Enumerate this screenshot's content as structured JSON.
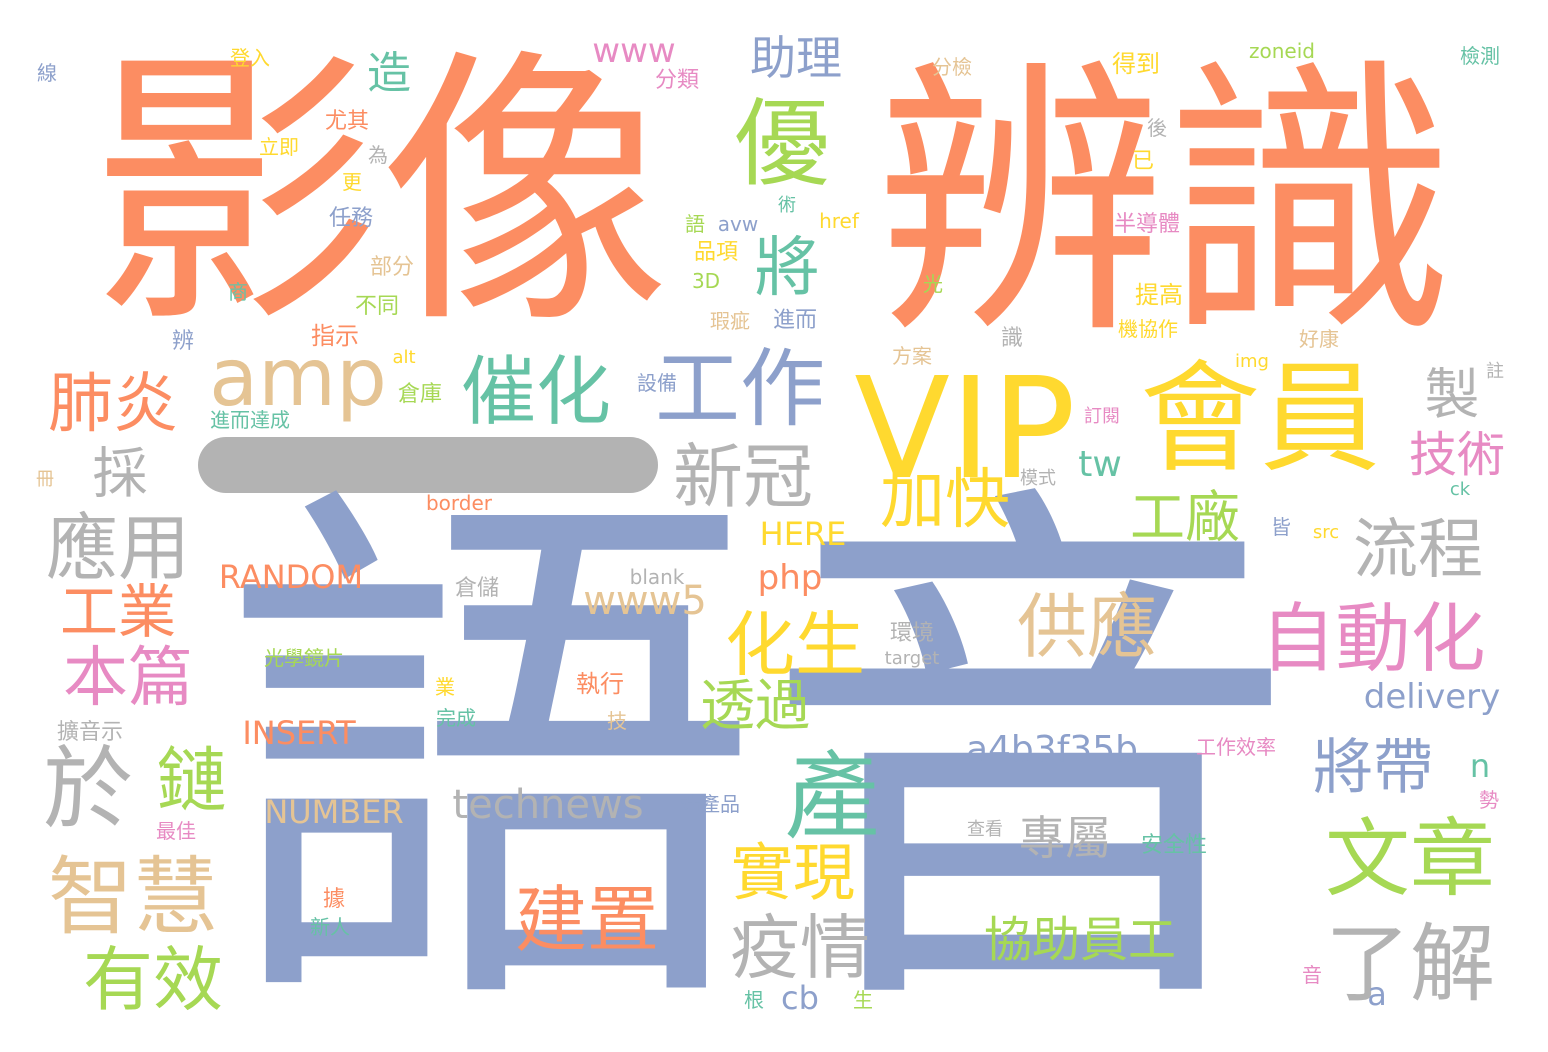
{
  "palette": {
    "orange": "#fc8d62",
    "blue": "#8da0cb",
    "pink": "#e78ac3",
    "green": "#a6d854",
    "yellow": "#ffd92f",
    "tan": "#e5c494",
    "grey": "#b3b3b3",
    "teal": "#66c2a5"
  },
  "words": [
    {
      "text": "影像",
      "color": "orange"
    },
    {
      "text": "辨識",
      "color": "orange"
    },
    {
      "text": "語音",
      "color": "blue"
    },
    {
      "text": "VIP",
      "color": "yellow"
    },
    {
      "text": "會員",
      "color": "yellow"
    },
    {
      "text": "優",
      "color": "green"
    },
    {
      "text": "amp",
      "color": "tan"
    },
    {
      "text": "工作",
      "color": "blue"
    },
    {
      "text": "催化",
      "color": "teal"
    },
    {
      "text": "將",
      "color": "teal"
    },
    {
      "text": "肺炎",
      "color": "orange"
    },
    {
      "text": "採",
      "color": "grey"
    },
    {
      "text": "應用",
      "color": "grey"
    },
    {
      "text": "工業",
      "color": "orange"
    },
    {
      "text": "本篇",
      "color": "pink"
    },
    {
      "text": "於",
      "color": "grey"
    },
    {
      "text": "鏈",
      "color": "green"
    },
    {
      "text": "智慧",
      "color": "tan"
    },
    {
      "text": "有效",
      "color": "green"
    },
    {
      "text": "新冠",
      "color": "grey"
    },
    {
      "text": "加快",
      "color": "yellow"
    },
    {
      "text": "化生",
      "color": "yellow"
    },
    {
      "text": "透過",
      "color": "green"
    },
    {
      "text": "產",
      "color": "teal"
    },
    {
      "text": "實現",
      "color": "yellow"
    },
    {
      "text": "疫情",
      "color": "grey"
    },
    {
      "text": "建置",
      "color": "orange"
    },
    {
      "text": "供應",
      "color": "tan"
    },
    {
      "text": "專屬",
      "color": "grey"
    },
    {
      "text": "協助員工",
      "color": "green"
    },
    {
      "text": "自動化",
      "color": "pink"
    },
    {
      "text": "流程",
      "color": "grey"
    },
    {
      "text": "工廠",
      "color": "green"
    },
    {
      "text": "技術",
      "color": "pink"
    },
    {
      "text": "製",
      "color": "grey"
    },
    {
      "text": "將帶",
      "color": "blue"
    },
    {
      "text": "文章",
      "color": "green"
    },
    {
      "text": "了解",
      "color": "grey"
    },
    {
      "text": "a4b3f35b",
      "color": "blue"
    },
    {
      "text": "delivery",
      "color": "blue"
    },
    {
      "text": "technews",
      "color": "grey"
    },
    {
      "text": "www5",
      "color": "tan"
    },
    {
      "text": "php",
      "color": "orange"
    },
    {
      "text": "tw",
      "color": "teal"
    },
    {
      "text": "助理",
      "color": "blue"
    },
    {
      "text": "造",
      "color": "teal"
    },
    {
      "text": "www",
      "color": "pink"
    },
    {
      "text": "RANDOM",
      "color": "orange"
    },
    {
      "text": "INSERT",
      "color": "orange"
    },
    {
      "text": "NUMBER",
      "color": "tan"
    },
    {
      "text": "HERE",
      "color": "yellow"
    },
    {
      "text": "n",
      "color": "teal"
    },
    {
      "text": "a",
      "color": "blue"
    },
    {
      "text": "cb",
      "color": "blue"
    },
    {
      "text": "線",
      "color": "blue"
    },
    {
      "text": "登入",
      "color": "yellow"
    },
    {
      "text": "分類",
      "color": "pink"
    },
    {
      "text": "分檢",
      "color": "tan"
    },
    {
      "text": "得到",
      "color": "yellow"
    },
    {
      "text": "zoneid",
      "color": "green"
    },
    {
      "text": "檢測",
      "color": "teal"
    },
    {
      "text": "尤其",
      "color": "orange"
    },
    {
      "text": "立即",
      "color": "yellow"
    },
    {
      "text": "為",
      "color": "grey"
    },
    {
      "text": "更",
      "color": "yellow"
    },
    {
      "text": "任務",
      "color": "blue"
    },
    {
      "text": "後",
      "color": "grey"
    },
    {
      "text": "已",
      "color": "yellow"
    },
    {
      "text": "術",
      "color": "teal"
    },
    {
      "text": "語",
      "color": "green"
    },
    {
      "text": "avw",
      "color": "blue"
    },
    {
      "text": "href",
      "color": "yellow"
    },
    {
      "text": "半導體",
      "color": "pink"
    },
    {
      "text": "品項",
      "color": "yellow"
    },
    {
      "text": "3D",
      "color": "green"
    },
    {
      "text": "光",
      "color": "green"
    },
    {
      "text": "部分",
      "color": "tan"
    },
    {
      "text": "商",
      "color": "teal"
    },
    {
      "text": "不同",
      "color": "green"
    },
    {
      "text": "提高",
      "color": "yellow"
    },
    {
      "text": "機協作",
      "color": "yellow"
    },
    {
      "text": "瑕疵",
      "color": "tan"
    },
    {
      "text": "進而",
      "color": "blue"
    },
    {
      "text": "辨",
      "color": "blue"
    },
    {
      "text": "指示",
      "color": "orange"
    },
    {
      "text": "alt",
      "color": "yellow"
    },
    {
      "text": "識",
      "color": "grey"
    },
    {
      "text": "方案",
      "color": "tan"
    },
    {
      "text": "img",
      "color": "yellow"
    },
    {
      "text": "好康",
      "color": "tan"
    },
    {
      "text": "設備",
      "color": "blue"
    },
    {
      "text": "倉庫",
      "color": "green"
    },
    {
      "text": "進而達成",
      "color": "teal"
    },
    {
      "text": "訂閱",
      "color": "pink"
    },
    {
      "text": "註",
      "color": "grey"
    },
    {
      "text": "冊",
      "color": "tan"
    },
    {
      "text": "模式",
      "color": "grey"
    },
    {
      "text": "ck",
      "color": "teal"
    },
    {
      "text": "border",
      "color": "orange"
    },
    {
      "text": "皆",
      "color": "blue"
    },
    {
      "text": "src",
      "color": "yellow"
    },
    {
      "text": "blank",
      "color": "grey"
    },
    {
      "text": "倉儲",
      "color": "grey"
    },
    {
      "text": "環境",
      "color": "grey"
    },
    {
      "text": "target",
      "color": "grey"
    },
    {
      "text": "光學鏡片",
      "color": "green"
    },
    {
      "text": "業",
      "color": "yellow"
    },
    {
      "text": "執行",
      "color": "orange"
    },
    {
      "text": "完成",
      "color": "teal"
    },
    {
      "text": "技",
      "color": "tan"
    },
    {
      "text": "擴音示",
      "color": "grey"
    },
    {
      "text": "工作效率",
      "color": "pink"
    },
    {
      "text": "勢",
      "color": "pink"
    },
    {
      "text": "端產品",
      "color": "blue"
    },
    {
      "text": "最佳",
      "color": "pink"
    },
    {
      "text": "查看",
      "color": "grey"
    },
    {
      "text": "安全性",
      "color": "teal"
    },
    {
      "text": "據",
      "color": "orange"
    },
    {
      "text": "新人",
      "color": "teal"
    },
    {
      "text": "音",
      "color": "pink"
    },
    {
      "text": "根",
      "color": "teal"
    },
    {
      "text": "生",
      "color": "green"
    }
  ]
}
